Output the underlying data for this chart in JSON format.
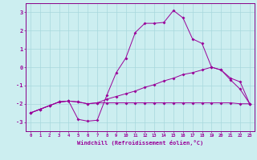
{
  "xlabel": "Windchill (Refroidissement éolien,°C)",
  "bg_color": "#cceef0",
  "grid_color": "#a8d8dc",
  "line_color": "#990099",
  "spine_color": "#880088",
  "xlim": [
    -0.5,
    23.5
  ],
  "ylim": [
    -3.5,
    3.5
  ],
  "xticks": [
    0,
    1,
    2,
    3,
    4,
    5,
    6,
    7,
    8,
    9,
    10,
    11,
    12,
    13,
    14,
    15,
    16,
    17,
    18,
    19,
    20,
    21,
    22,
    23
  ],
  "yticks": [
    -3,
    -2,
    -1,
    0,
    1,
    2,
    3
  ],
  "line1_x": [
    0,
    1,
    2,
    3,
    4,
    5,
    6,
    7,
    8,
    9,
    10,
    11,
    12,
    13,
    14,
    15,
    16,
    17,
    18,
    19,
    20,
    21,
    22,
    23
  ],
  "line1_y": [
    -2.5,
    -2.3,
    -2.1,
    -1.9,
    -1.85,
    -2.85,
    -2.95,
    -2.9,
    -1.55,
    -0.3,
    0.5,
    1.9,
    2.4,
    2.4,
    2.45,
    3.1,
    2.7,
    1.55,
    1.3,
    0.0,
    -0.15,
    -0.7,
    -1.2,
    -2.0
  ],
  "line2_x": [
    0,
    1,
    2,
    3,
    4,
    5,
    6,
    7,
    8,
    9,
    10,
    11,
    12,
    13,
    14,
    15,
    16,
    17,
    18,
    19,
    20,
    21,
    22,
    23
  ],
  "line2_y": [
    -2.5,
    -2.3,
    -2.1,
    -1.9,
    -1.85,
    -1.9,
    -2.0,
    -1.95,
    -1.75,
    -1.6,
    -1.45,
    -1.3,
    -1.1,
    -0.95,
    -0.75,
    -0.6,
    -0.4,
    -0.3,
    -0.15,
    0.0,
    -0.15,
    -0.6,
    -0.8,
    -2.0
  ],
  "line3_x": [
    0,
    1,
    2,
    3,
    4,
    5,
    6,
    7,
    8,
    9,
    10,
    11,
    12,
    13,
    14,
    15,
    16,
    17,
    18,
    19,
    20,
    21,
    22,
    23
  ],
  "line3_y": [
    -2.5,
    -2.3,
    -2.1,
    -1.9,
    -1.85,
    -1.9,
    -2.0,
    -1.95,
    -1.95,
    -1.95,
    -1.95,
    -1.95,
    -1.95,
    -1.95,
    -1.95,
    -1.95,
    -1.95,
    -1.95,
    -1.95,
    -1.95,
    -1.95,
    -1.95,
    -2.0,
    -2.0
  ]
}
